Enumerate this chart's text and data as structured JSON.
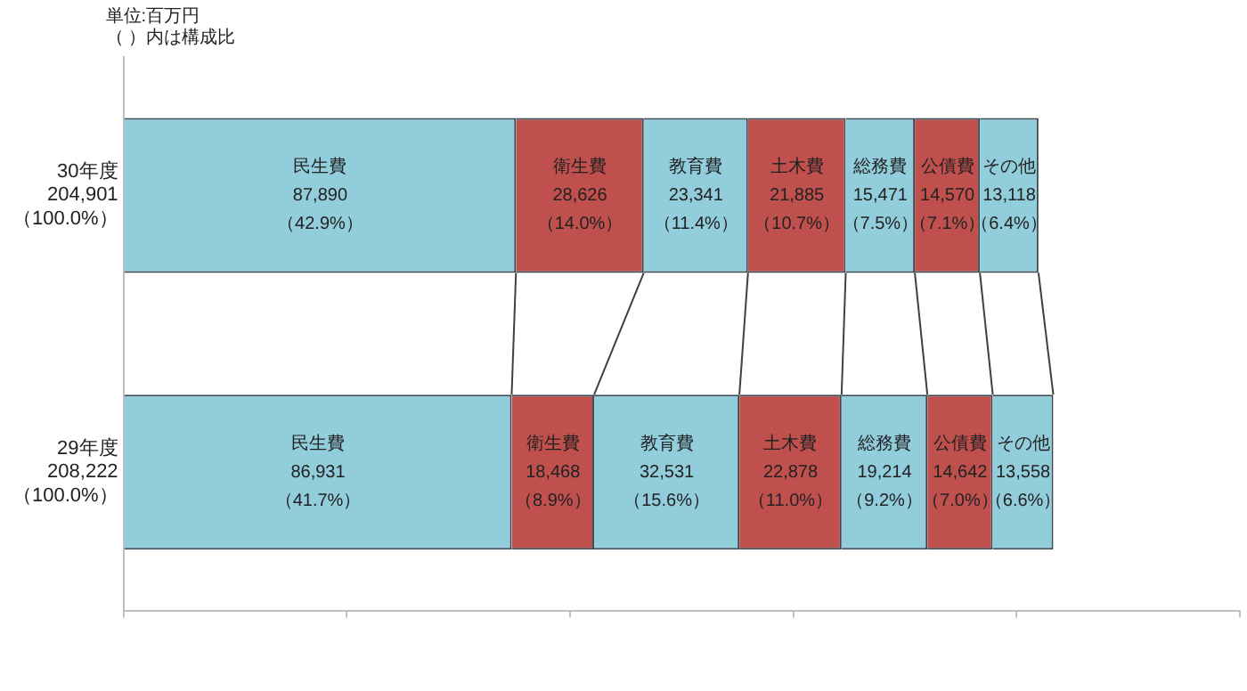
{
  "chart_data": {
    "type": "bar",
    "orientation": "horizontal",
    "stacked": true,
    "categories": [
      "30年度\n204,901\n（100.0%）",
      "29年度\n208,222\n（100.0%）"
    ],
    "series": [
      {
        "name": "民生費",
        "color": "#92cddc",
        "values": [
          87890,
          86931
        ],
        "value_labels": [
          "87,890\n（42.9%）",
          "86,931\n（41.7%）"
        ]
      },
      {
        "name": "衛生費",
        "color": "#c0504d",
        "values": [
          28626,
          18468
        ],
        "value_labels": [
          "28,626\n（14.0%）",
          "18,468\n（8.9%）"
        ]
      },
      {
        "name": "教育費",
        "color": "#92cddc",
        "values": [
          23341,
          32531
        ],
        "value_labels": [
          "23,341\n（11.4%）",
          "32,531\n（15.6%）"
        ]
      },
      {
        "name": "土木費",
        "color": "#c0504d",
        "values": [
          21885,
          22878
        ],
        "value_labels": [
          "21,885\n（10.7%）",
          "22,878\n（11.0%）"
        ]
      },
      {
        "name": "総務費",
        "color": "#92cddc",
        "values": [
          15471,
          19214
        ],
        "value_labels": [
          "15,471\n（7.5%）",
          "19,214\n（9.2%）"
        ]
      },
      {
        "name": "公債費",
        "color": "#c0504d",
        "values": [
          14570,
          14642
        ],
        "value_labels": [
          "14,570\n（7.1%）",
          "14,642\n（7.0%）"
        ]
      },
      {
        "name": "その他",
        "color": "#92cddc",
        "values": [
          13118,
          13558
        ],
        "value_labels": [
          "13,118\n（6.4%）",
          "13,558\n（6.6%）"
        ]
      }
    ],
    "xlim": [
      0,
      250000
    ],
    "xticks": [
      {
        "value": 0,
        "label": null
      },
      {
        "value": 50000,
        "label": null
      },
      {
        "value": 100000,
        "label": null
      },
      {
        "value": 150000,
        "label": null
      },
      {
        "value": 200000,
        "label": null
      },
      {
        "value": 250000,
        "label": null
      }
    ],
    "tick_labels": "y",
    "grid": false,
    "legend": false,
    "annotations": [
      "単位:百万円",
      "（ ）内は構成比"
    ]
  }
}
